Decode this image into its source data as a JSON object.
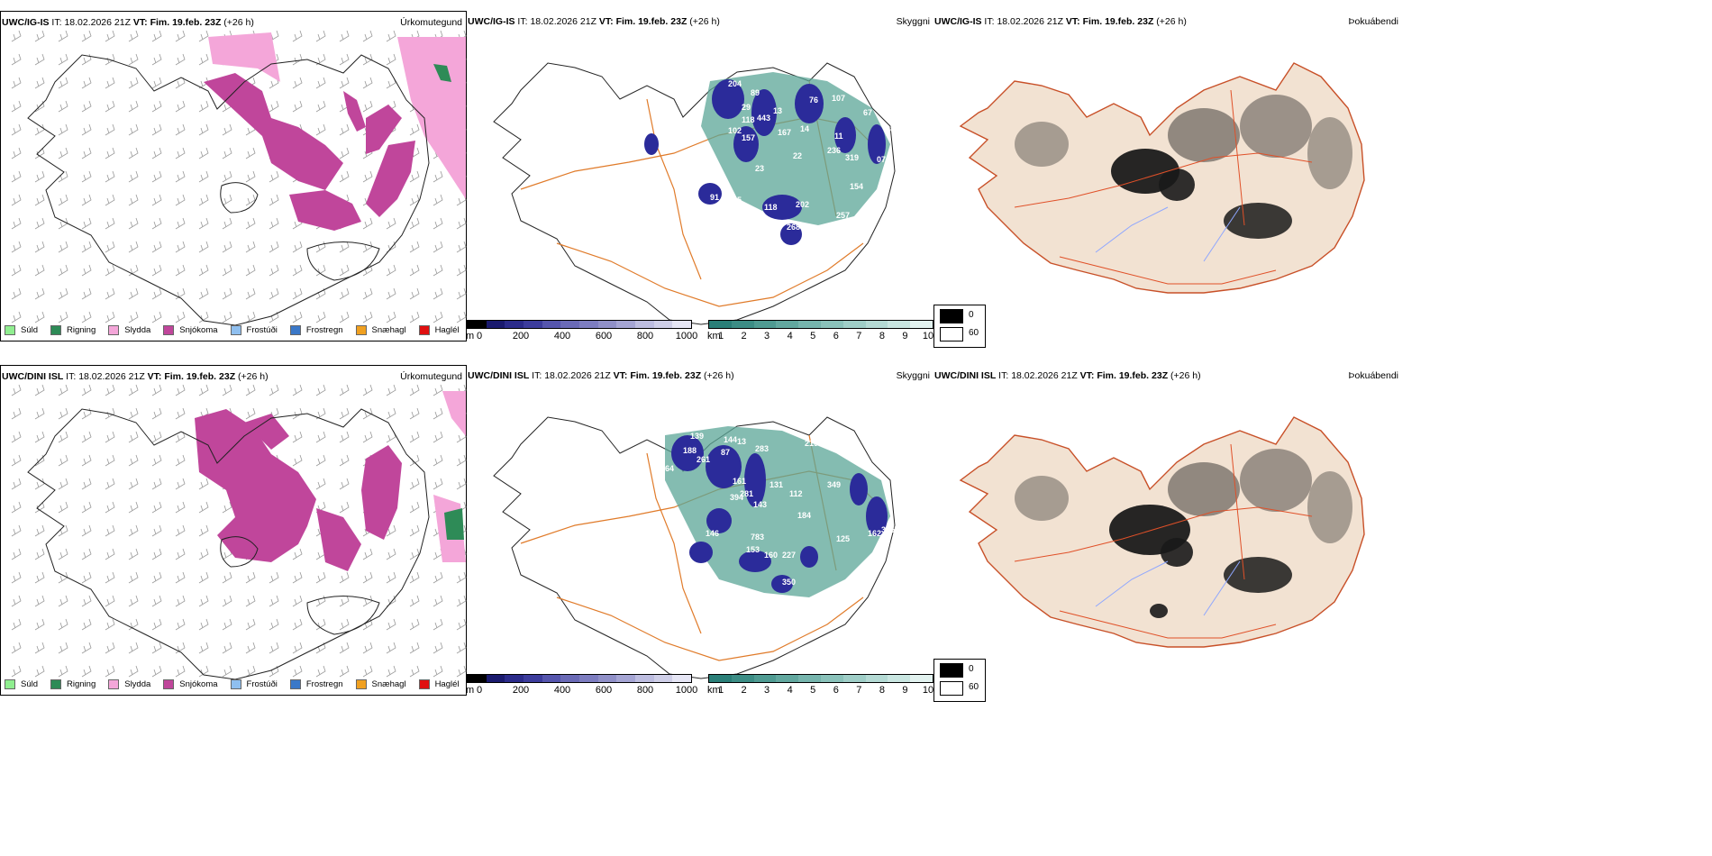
{
  "rows": [
    {
      "model": "UWC/IG-IS",
      "precip_title": "Úrkomutegund",
      "cloud_title": "Skyggni",
      "fog_title": "Þokuábendi"
    },
    {
      "model": "UWC/DINI ISL",
      "precip_title": "Úrkomutegund",
      "cloud_title": "Skyggni",
      "fog_title": "Þokuábendi"
    }
  ],
  "it_label": "IT:",
  "it_value": "18.02.2026 21Z",
  "vt_label": "VT: Fim. 19.feb. 23Z",
  "lead": "(+26 h)",
  "precip_legend": [
    {
      "label": "Súld",
      "color": "#90ee90"
    },
    {
      "label": "Rigning",
      "color": "#2e8b57"
    },
    {
      "label": "Slydda",
      "color": "#f4a6d9"
    },
    {
      "label": "Snjókoma",
      "color": "#c0469b"
    },
    {
      "label": "Frostúði",
      "color": "#8fbfef"
    },
    {
      "label": "Frostregn",
      "color": "#3a78c8"
    },
    {
      "label": "Snæhagl",
      "color": "#f0a020"
    },
    {
      "label": "Haglél",
      "color": "#e01010"
    }
  ],
  "cloudbase_bar": {
    "unit": "m",
    "ticks": [
      "0",
      "200",
      "400",
      "600",
      "800",
      "1000"
    ],
    "colors": [
      "#000000",
      "#1a1a6e",
      "#2b2b8a",
      "#3c3c9c",
      "#5555ad",
      "#6a6ab6",
      "#7d7dc0",
      "#9090c8",
      "#a5a5d4",
      "#bdbde0",
      "#cfcfe8",
      "#e6e6f5"
    ]
  },
  "visibility_bar": {
    "unit": "km",
    "ticks": [
      "1",
      "2",
      "3",
      "4",
      "5",
      "6",
      "7",
      "8",
      "9",
      "10"
    ],
    "colors": [
      "#2a7f78",
      "#3c8d85",
      "#4f9b92",
      "#62a89f",
      "#76b5ad",
      "#8ac2ba",
      "#9fcec7",
      "#b4dad4",
      "#c9e6e1",
      "#e2f2ef"
    ]
  },
  "fog_legend": {
    "top": "0",
    "bottom": "60"
  },
  "cloud_labels_top": [
    "52",
    "204",
    "89",
    "29",
    "118",
    "443",
    "13",
    "76",
    "107",
    "67",
    "88",
    "95",
    "79",
    "07",
    "102",
    "157",
    "167",
    "14",
    "22",
    "236",
    "11",
    "319",
    "23",
    "154",
    "91",
    "105",
    "118",
    "202",
    "268",
    "257"
  ],
  "cloud_labels_bottom": [
    "139",
    "144",
    "13",
    "188",
    "87",
    "261",
    "283",
    "219",
    "164",
    "161",
    "394",
    "281",
    "143",
    "131",
    "112",
    "184",
    "349",
    "315",
    "162",
    "125",
    "146",
    "783",
    "153",
    "160",
    "227",
    "350"
  ],
  "colors": {
    "precip_snow": "#c0469b",
    "precip_sleet": "#f4a6d9",
    "precip_rain": "#2e8b57",
    "cloud_blue": "#2b2b9a",
    "cloud_teal": "#5ba597",
    "road": "#e07b2a",
    "land": "#f2e2d2"
  }
}
